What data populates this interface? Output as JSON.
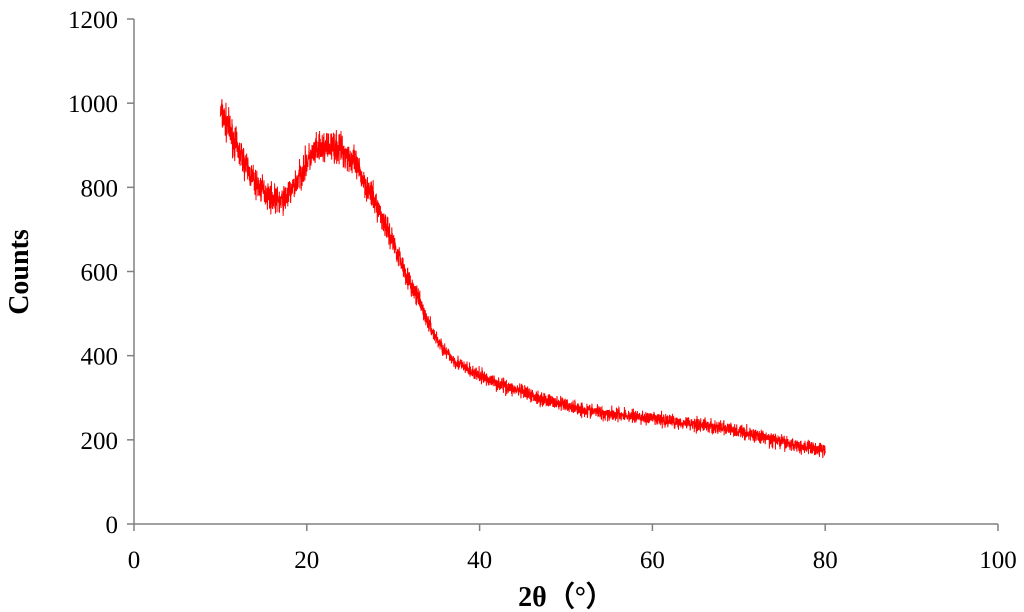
{
  "chart_data": {
    "type": "line",
    "title": "",
    "xlabel": "2θ（°）",
    "ylabel": "Counts",
    "xlim": [
      0,
      100
    ],
    "ylim": [
      0,
      1200
    ],
    "x_ticks": [
      0,
      20,
      40,
      60,
      80,
      100
    ],
    "y_ticks": [
      0,
      200,
      400,
      600,
      800,
      1000,
      1200
    ],
    "x_tick_labels": [
      "0",
      "20",
      "40",
      "60",
      "80",
      "100"
    ],
    "y_tick_labels": [
      "0",
      "200",
      "400",
      "600",
      "800",
      "1000",
      "1200"
    ],
    "grid": false,
    "legend": "none",
    "series": [
      {
        "color": "#ff0000",
        "x": [
          10,
          11,
          12,
          13,
          14,
          15,
          16,
          17,
          18,
          19,
          20,
          21,
          22,
          23,
          24,
          25,
          26,
          27,
          28,
          29,
          30,
          31,
          32,
          33,
          34,
          35,
          36,
          37,
          38,
          39,
          40,
          42,
          44,
          46,
          48,
          50,
          52,
          54,
          56,
          58,
          60,
          62,
          64,
          66,
          68,
          70,
          72,
          74,
          76,
          78,
          80
        ],
        "values": [
          980,
          940,
          890,
          850,
          810,
          790,
          775,
          765,
          785,
          820,
          860,
          885,
          895,
          895,
          890,
          870,
          840,
          800,
          760,
          715,
          670,
          620,
          570,
          530,
          480,
          440,
          410,
          390,
          375,
          362,
          352,
          335,
          320,
          305,
          293,
          282,
          272,
          265,
          260,
          255,
          250,
          245,
          240,
          235,
          228,
          220,
          210,
          200,
          190,
          182,
          175
        ]
      }
    ]
  }
}
